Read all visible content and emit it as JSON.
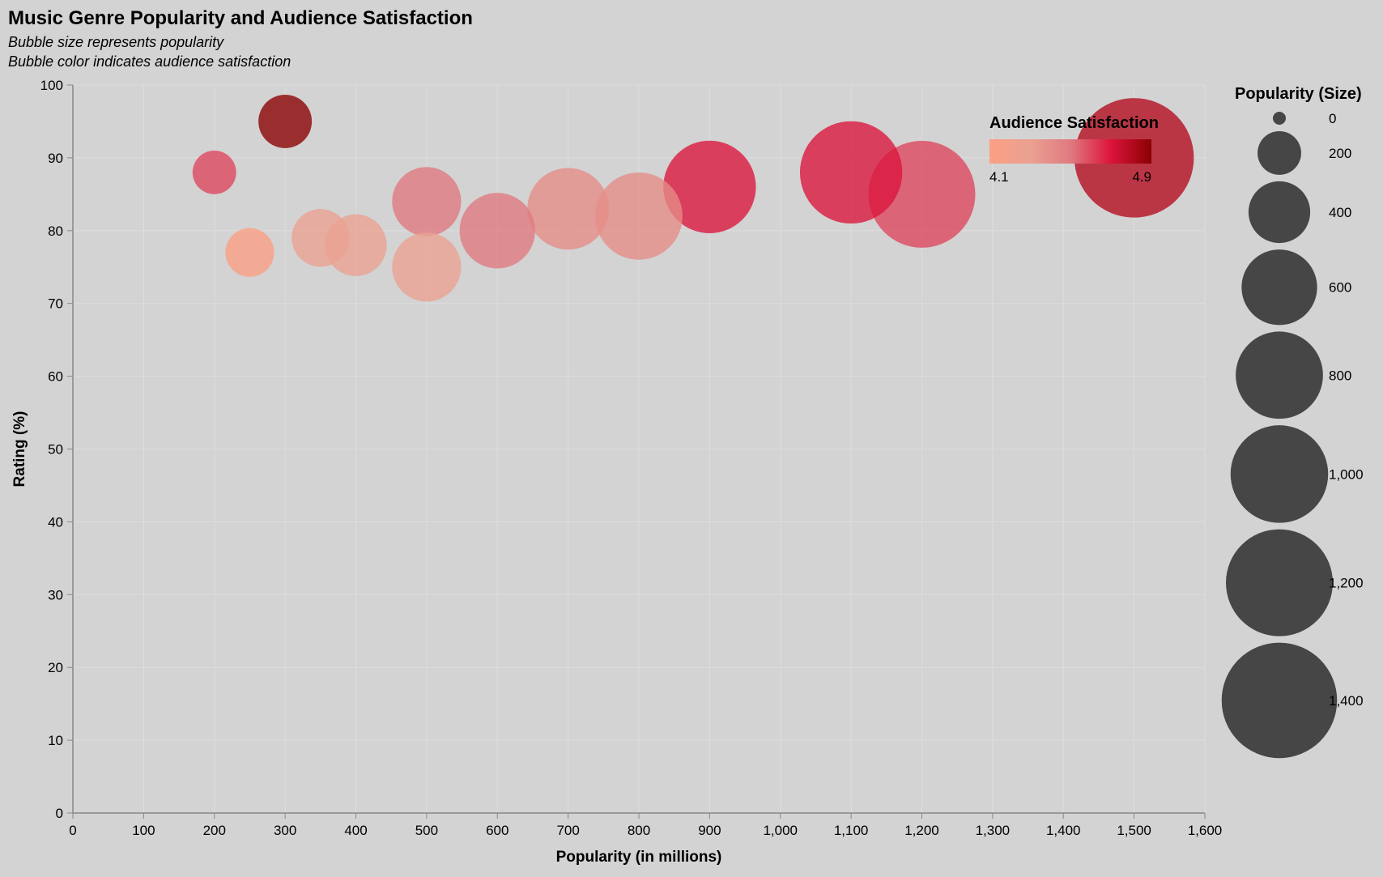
{
  "chart_data": {
    "type": "scatter",
    "title": "Music Genre Popularity and Audience Satisfaction",
    "subtitle": [
      "Bubble size represents popularity",
      "Bubble color indicates audience satisfaction"
    ],
    "xlabel": "Popularity (in millions)",
    "ylabel": "Rating (%)",
    "xlim": [
      0,
      1600
    ],
    "ylim": [
      0,
      100
    ],
    "x_ticks": [
      "0",
      "100",
      "200",
      "300",
      "400",
      "500",
      "600",
      "700",
      "800",
      "900",
      "1,000",
      "1,100",
      "1,200",
      "1,300",
      "1,400",
      "1,500",
      "1,600"
    ],
    "y_ticks": [
      "0",
      "10",
      "20",
      "30",
      "40",
      "50",
      "60",
      "70",
      "80",
      "90",
      "100"
    ],
    "grid": true,
    "points": [
      {
        "x": 1500,
        "y": 90,
        "satisfaction": 4.8
      },
      {
        "x": 1200,
        "y": 85,
        "satisfaction": 4.6
      },
      {
        "x": 1100,
        "y": 88,
        "satisfaction": 4.7
      },
      {
        "x": 900,
        "y": 86,
        "satisfaction": 4.7
      },
      {
        "x": 800,
        "y": 82,
        "satisfaction": 4.4
      },
      {
        "x": 700,
        "y": 83,
        "satisfaction": 4.4
      },
      {
        "x": 600,
        "y": 80,
        "satisfaction": 4.5
      },
      {
        "x": 500,
        "y": 84,
        "satisfaction": 4.5
      },
      {
        "x": 500,
        "y": 75,
        "satisfaction": 4.3
      },
      {
        "x": 400,
        "y": 78,
        "satisfaction": 4.3
      },
      {
        "x": 350,
        "y": 79,
        "satisfaction": 4.3
      },
      {
        "x": 300,
        "y": 95,
        "satisfaction": 4.9
      },
      {
        "x": 250,
        "y": 77,
        "satisfaction": 4.1
      },
      {
        "x": 200,
        "y": 88,
        "satisfaction": 4.6
      }
    ],
    "color_legend": {
      "title": "Audience Satisfaction",
      "min_label": "4.1",
      "max_label": "4.9",
      "min": 4.1,
      "max": 4.9,
      "colors": [
        "#fc9f84",
        "#eaa191",
        "#e07a80",
        "#dc143c",
        "#8b0000"
      ]
    },
    "size_legend": {
      "title": "Popularity (Size)",
      "values": [
        0,
        200,
        400,
        600,
        800,
        1000,
        1200,
        1400
      ],
      "labels": [
        "0",
        "200",
        "400",
        "600",
        "800",
        "1,000",
        "1,200",
        "1,400"
      ],
      "color": "#464646"
    }
  }
}
